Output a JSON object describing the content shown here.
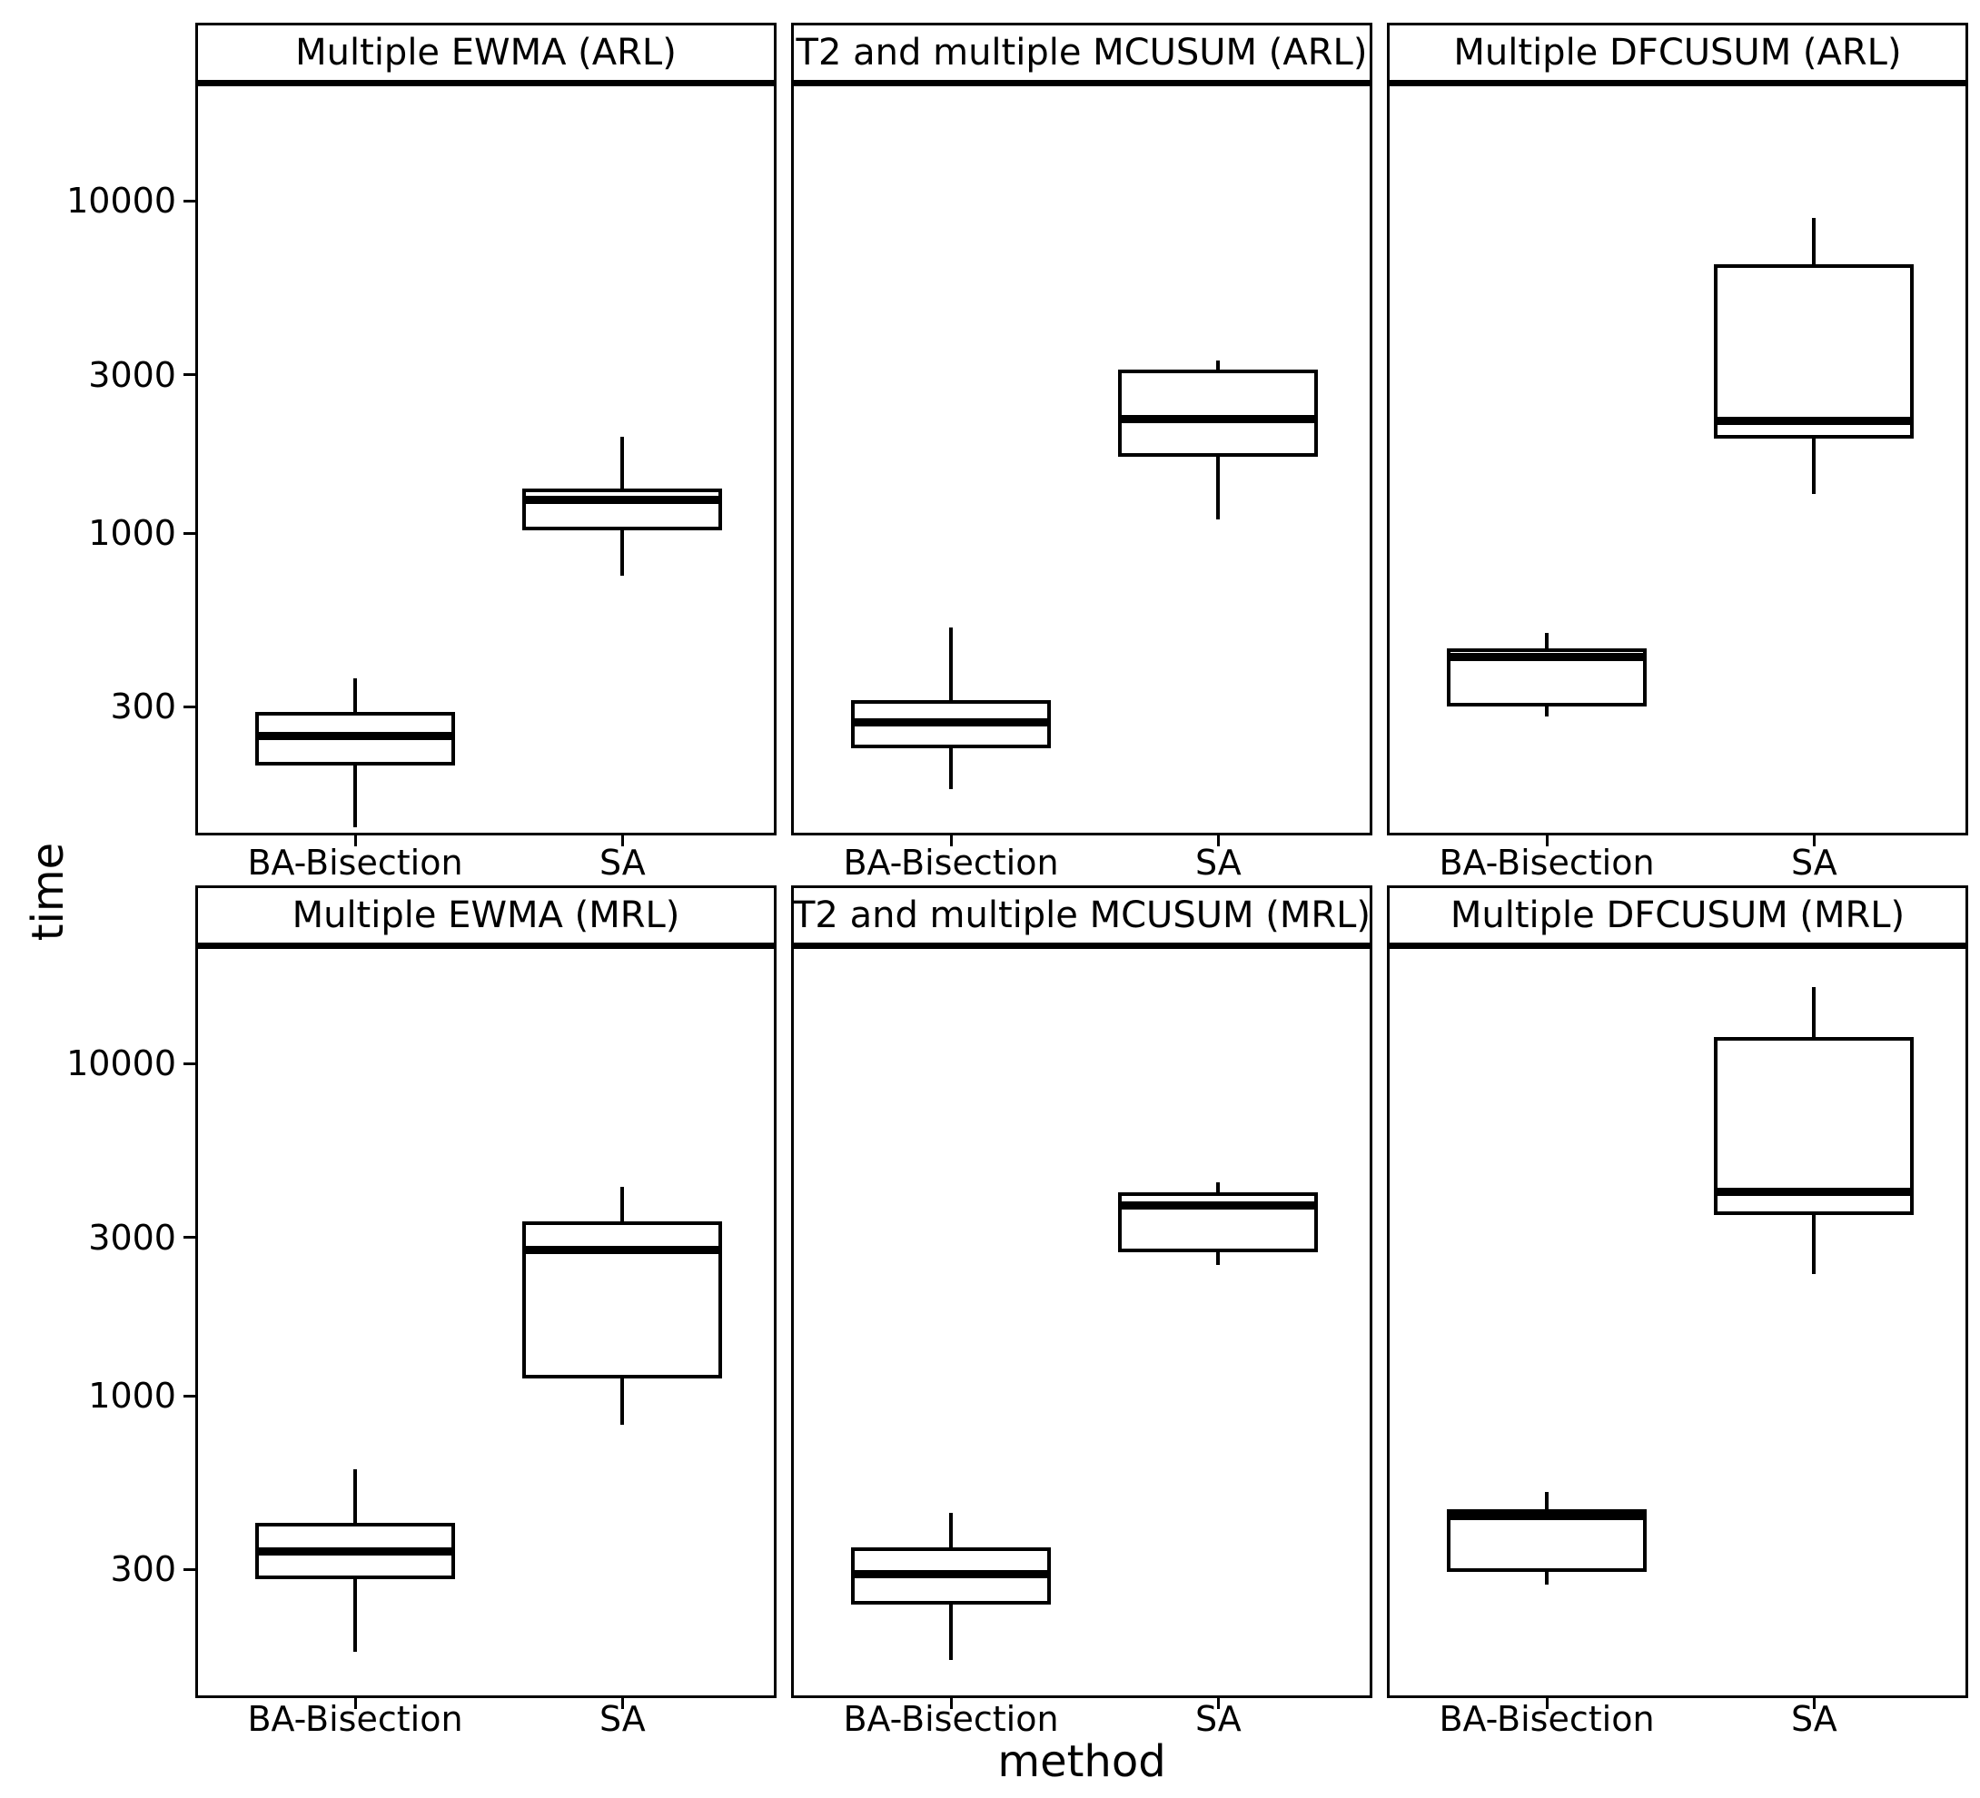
{
  "figure": {
    "y_axis_title": "time",
    "x_axis_title": "method",
    "colors": {
      "foreground": "#000000",
      "background": "#ffffff"
    }
  },
  "chart_data": {
    "type": "boxplot",
    "title": "",
    "xlabel": "method",
    "ylabel": "time",
    "y_scale": "log10",
    "grid": "off",
    "y_ticks": [
      10000,
      3000,
      1000,
      300
    ],
    "y_tick_labels": [
      "10000",
      "3000",
      "1000",
      "300"
    ],
    "ylim_log10": [
      2.09,
      4.345
    ],
    "x_categories": [
      "BA-Bisection",
      "SA"
    ],
    "facet_grid": {
      "rows": 2,
      "cols": 3
    },
    "facets": [
      {
        "label": "Multiple EWMA (ARL)",
        "row": 0,
        "col": 0,
        "boxes": [
          {
            "category": "BA-Bisection",
            "min": 130,
            "q1": 200,
            "median": 245,
            "q3": 290,
            "max": 365
          },
          {
            "category": "SA",
            "min": 745,
            "q1": 1020,
            "median": 1260,
            "q3": 1360,
            "max": 1950
          }
        ]
      },
      {
        "label": "T2 and multiple MCUSUM (ARL)",
        "row": 0,
        "col": 1,
        "boxes": [
          {
            "category": "BA-Bisection",
            "min": 170,
            "q1": 225,
            "median": 270,
            "q3": 315,
            "max": 520
          },
          {
            "category": "SA",
            "min": 1100,
            "q1": 1700,
            "median": 2200,
            "q3": 3100,
            "max": 3300
          }
        ]
      },
      {
        "label": "Multiple DFCUSUM (ARL)",
        "row": 0,
        "col": 2,
        "boxes": [
          {
            "category": "BA-Bisection",
            "min": 280,
            "q1": 300,
            "median": 425,
            "q3": 450,
            "max": 500
          },
          {
            "category": "SA",
            "min": 1310,
            "q1": 1930,
            "median": 2170,
            "q3": 6450,
            "max": 8900
          }
        ]
      },
      {
        "label": "Multiple EWMA (MRL)",
        "row": 1,
        "col": 0,
        "boxes": [
          {
            "category": "BA-Bisection",
            "min": 170,
            "q1": 280,
            "median": 340,
            "q3": 415,
            "max": 600
          },
          {
            "category": "SA",
            "min": 820,
            "q1": 1130,
            "median": 2750,
            "q3": 3350,
            "max": 4250
          }
        ]
      },
      {
        "label": "T2 and multiple MCUSUM (MRL)",
        "row": 1,
        "col": 1,
        "boxes": [
          {
            "category": "BA-Bisection",
            "min": 160,
            "q1": 235,
            "median": 290,
            "q3": 350,
            "max": 445
          },
          {
            "category": "SA",
            "min": 2480,
            "q1": 2700,
            "median": 3740,
            "q3": 4100,
            "max": 4400
          }
        ]
      },
      {
        "label": "Multiple DFCUSUM (MRL)",
        "row": 1,
        "col": 2,
        "boxes": [
          {
            "category": "BA-Bisection",
            "min": 270,
            "q1": 295,
            "median": 435,
            "q3": 455,
            "max": 515
          },
          {
            "category": "SA",
            "min": 2330,
            "q1": 3500,
            "median": 4100,
            "q3": 12000,
            "max": 17000
          }
        ]
      }
    ]
  }
}
